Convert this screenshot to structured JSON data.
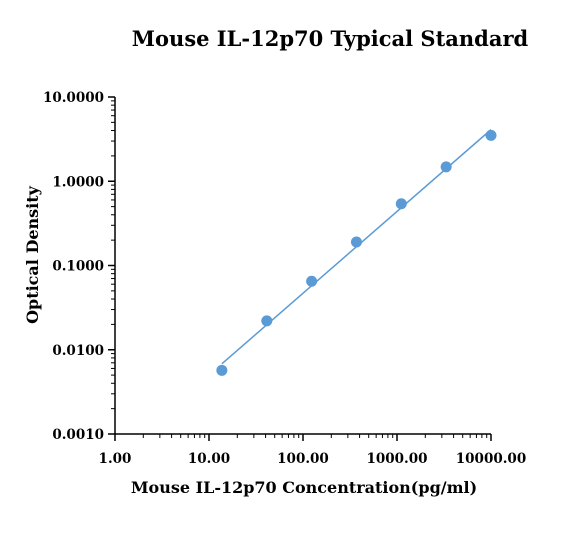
{
  "chart_data": {
    "type": "scatter",
    "title": "Mouse IL-12p70 Typical Standard",
    "xlabel": "Mouse IL-12p70 Concentration(pg/ml)",
    "ylabel": "Optical Density",
    "xscale": "log",
    "yscale": "log",
    "xlim": [
      1,
      10000
    ],
    "ylim": [
      0.001,
      10
    ],
    "x_ticks": [
      "1.00",
      "10.00",
      "100.00",
      "1000.00",
      "10000.00"
    ],
    "y_ticks": [
      "0.0010",
      "0.0100",
      "0.1000",
      "1.0000",
      "10.0000"
    ],
    "grid": false,
    "color": "#5b9bd5",
    "series": [
      {
        "x": [
          13.7,
          41.2,
          123.5,
          370.4,
          1111,
          3333,
          10000
        ],
        "y": [
          0.0057,
          0.022,
          0.065,
          0.19,
          0.54,
          1.48,
          3.5
        ]
      }
    ],
    "fit_line": {
      "x": [
        13.7,
        10000
      ],
      "y": [
        0.0068,
        4.1
      ]
    }
  }
}
